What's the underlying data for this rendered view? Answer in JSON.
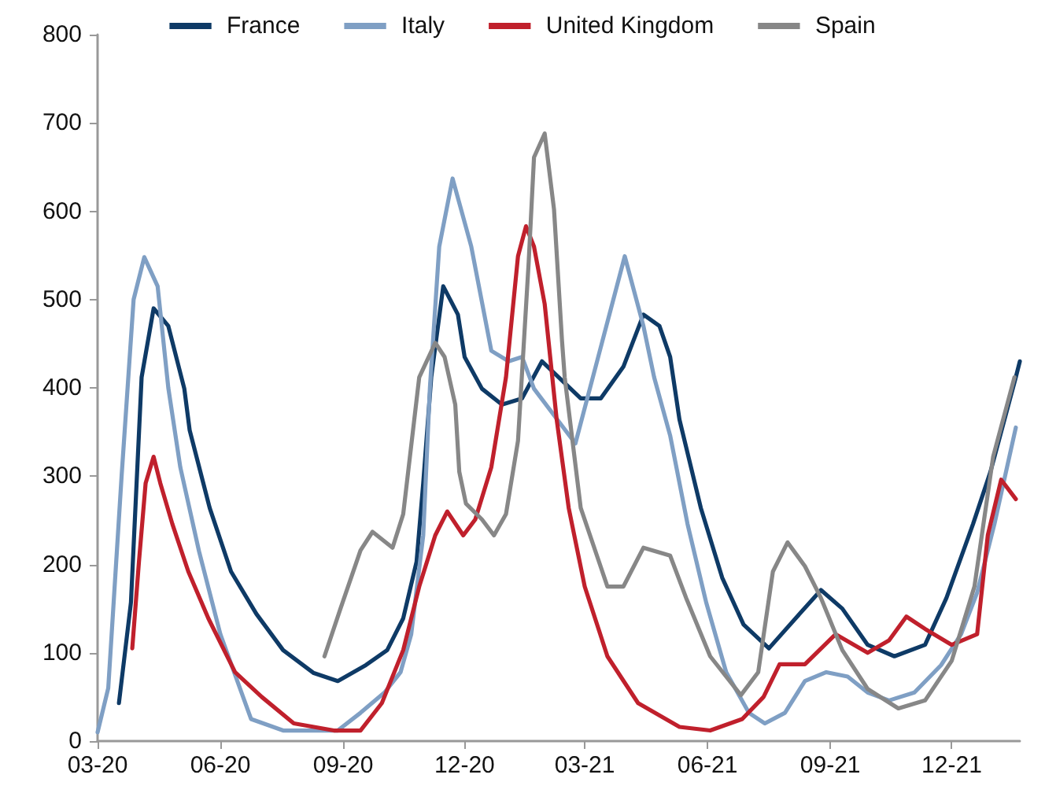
{
  "chart_data": {
    "type": "line",
    "legend": "top",
    "grid": false,
    "marker": "none",
    "line_style": "solid",
    "xlim": [
      "2020-03-01",
      "2022-01-21"
    ],
    "xticks": [
      {
        "value": "2020-03-01",
        "label": "03-20"
      },
      {
        "value": "2020-06-01",
        "label": "06-20"
      },
      {
        "value": "2020-09-01",
        "label": "09-20"
      },
      {
        "value": "2020-12-01",
        "label": "12-20"
      },
      {
        "value": "2021-03-01",
        "label": "03-21"
      },
      {
        "value": "2021-06-01",
        "label": "06-21"
      },
      {
        "value": "2021-09-01",
        "label": "09-21"
      },
      {
        "value": "2021-12-01",
        "label": "12-21"
      }
    ],
    "ylim": [
      0,
      800
    ],
    "yticks": [
      0,
      100,
      200,
      300,
      400,
      500,
      600,
      700,
      800
    ],
    "series": [
      {
        "name": "France",
        "color": "#0e3a66",
        "x": [
          "2020-03-17",
          "2020-03-26",
          "2020-04-03",
          "2020-04-12",
          "2020-04-23",
          "2020-05-05",
          "2020-05-09",
          "2020-05-24",
          "2020-06-09",
          "2020-06-28",
          "2020-07-18",
          "2020-08-10",
          "2020-08-28",
          "2020-09-18",
          "2020-10-04",
          "2020-10-16",
          "2020-10-26",
          "2020-10-31",
          "2020-11-06",
          "2020-11-15",
          "2020-11-26",
          "2020-12-01",
          "2020-12-14",
          "2020-12-29",
          "2021-01-13",
          "2021-01-28",
          "2021-02-26",
          "2021-03-13",
          "2021-03-30",
          "2021-04-14",
          "2021-04-26",
          "2021-05-04",
          "2021-05-11",
          "2021-05-27",
          "2021-06-12",
          "2021-06-28",
          "2021-07-17",
          "2021-08-06",
          "2021-08-25",
          "2021-09-10",
          "2021-09-29",
          "2021-10-19",
          "2021-11-11",
          "2021-11-27",
          "2021-12-17",
          "2021-12-30",
          "2022-01-18",
          "2022-01-21"
        ],
        "values": [
          43,
          157,
          412,
          490,
          470,
          399,
          352,
          264,
          192,
          144,
          103,
          77,
          68,
          86,
          103,
          139,
          203,
          292,
          412,
          515,
          483,
          435,
          399,
          381,
          388,
          430,
          388,
          388,
          424,
          483,
          470,
          435,
          364,
          264,
          185,
          132,
          105,
          139,
          171,
          150,
          109,
          96,
          109,
          162,
          246,
          305,
          412,
          430
        ]
      },
      {
        "name": "Italy",
        "color": "#7f9fc4",
        "x": [
          "2020-03-01",
          "2020-03-09",
          "2020-03-19",
          "2020-03-28",
          "2020-04-05",
          "2020-04-15",
          "2020-04-23",
          "2020-05-02",
          "2020-05-16",
          "2020-06-01",
          "2020-06-24",
          "2020-07-18",
          "2020-08-28",
          "2020-09-14",
          "2020-10-02",
          "2020-10-14",
          "2020-10-22",
          "2020-10-31",
          "2020-11-05",
          "2020-11-12",
          "2020-11-22",
          "2020-12-06",
          "2020-12-21",
          "2021-01-03",
          "2021-01-13",
          "2021-01-22",
          "2021-02-22",
          "2021-03-31",
          "2021-04-14",
          "2021-04-22",
          "2021-05-04",
          "2021-05-17",
          "2021-05-31",
          "2021-06-15",
          "2021-07-02",
          "2021-07-14",
          "2021-07-29",
          "2021-08-13",
          "2021-08-29",
          "2021-09-14",
          "2021-09-29",
          "2021-10-15",
          "2021-11-03",
          "2021-11-23",
          "2021-12-08",
          "2021-12-20",
          "2022-01-02",
          "2022-01-18"
        ],
        "values": [
          10,
          60,
          300,
          500,
          548,
          515,
          400,
          310,
          215,
          121,
          25,
          12,
          12,
          32,
          55,
          78,
          121,
          233,
          400,
          560,
          637,
          560,
          442,
          430,
          435,
          399,
          337,
          549,
          470,
          412,
          346,
          246,
          157,
          78,
          32,
          20,
          32,
          68,
          78,
          73,
          55,
          46,
          55,
          86,
          121,
          168,
          246,
          355
        ]
      },
      {
        "name": "United Kingdom",
        "color": "#c0202c",
        "x": [
          "2020-03-27",
          "2020-04-01",
          "2020-04-06",
          "2020-04-12",
          "2020-04-17",
          "2020-04-26",
          "2020-05-08",
          "2020-05-23",
          "2020-06-12",
          "2020-07-02",
          "2020-07-26",
          "2020-08-25",
          "2020-09-14",
          "2020-09-30",
          "2020-10-16",
          "2020-10-28",
          "2020-11-09",
          "2020-11-18",
          "2020-11-30",
          "2020-12-09",
          "2020-12-21",
          "2021-01-01",
          "2021-01-10",
          "2021-01-16",
          "2021-01-22",
          "2021-01-30",
          "2021-02-08",
          "2021-02-17",
          "2021-03-01",
          "2021-03-18",
          "2021-04-10",
          "2021-05-11",
          "2021-06-03",
          "2021-06-27",
          "2021-07-13",
          "2021-07-25",
          "2021-08-13",
          "2021-09-05",
          "2021-09-29",
          "2021-10-15",
          "2021-10-28",
          "2021-11-11",
          "2021-12-01",
          "2021-12-20",
          "2021-12-28",
          "2022-01-07",
          "2022-01-18"
        ],
        "values": [
          105,
          203,
          292,
          322,
          292,
          246,
          192,
          139,
          78,
          50,
          20,
          12,
          12,
          43,
          103,
          175,
          233,
          260,
          233,
          251,
          310,
          412,
          549,
          583,
          560,
          495,
          364,
          264,
          175,
          96,
          43,
          16,
          12,
          25,
          50,
          87,
          87,
          121,
          100,
          114,
          141,
          127,
          109,
          121,
          233,
          296,
          274
        ]
      },
      {
        "name": "Spain",
        "color": "#878787",
        "x": [
          "2020-08-18",
          "2020-08-30",
          "2020-09-14",
          "2020-09-23",
          "2020-10-08",
          "2020-10-16",
          "2020-10-28",
          "2020-11-09",
          "2020-11-16",
          "2020-11-24",
          "2020-11-27",
          "2020-12-02",
          "2020-12-14",
          "2020-12-23",
          "2021-01-01",
          "2021-01-10",
          "2021-01-18",
          "2021-01-22",
          "2021-01-30",
          "2021-02-06",
          "2021-02-12",
          "2021-02-14",
          "2021-02-26",
          "2021-03-18",
          "2021-03-30",
          "2021-04-14",
          "2021-05-04",
          "2021-05-16",
          "2021-06-03",
          "2021-06-26",
          "2021-07-09",
          "2021-07-20",
          "2021-07-31",
          "2021-08-13",
          "2021-08-25",
          "2021-09-10",
          "2021-09-29",
          "2021-10-22",
          "2021-11-11",
          "2021-12-01",
          "2021-12-18",
          "2022-01-01",
          "2022-01-17"
        ],
        "values": [
          96,
          150,
          216,
          237,
          219,
          257,
          412,
          451,
          435,
          381,
          305,
          269,
          251,
          233,
          257,
          340,
          542,
          661,
          688,
          602,
          453,
          412,
          264,
          175,
          175,
          219,
          210,
          162,
          96,
          52,
          78,
          192,
          225,
          198,
          162,
          103,
          59,
          37,
          46,
          91,
          175,
          322,
          412
        ]
      }
    ]
  }
}
